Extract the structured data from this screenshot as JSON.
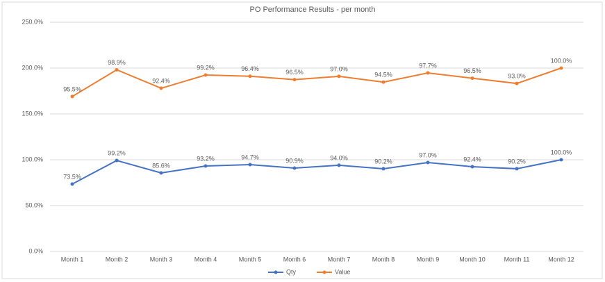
{
  "chart_data": {
    "type": "line",
    "stacked": true,
    "title": "PO Performance Results - per month",
    "categories": [
      "Month 1",
      "Month 2",
      "Month 3",
      "Month 4",
      "Month 5",
      "Month 6",
      "Month 7",
      "Month 8",
      "Month 9",
      "Month 10",
      "Month 11",
      "Month 12"
    ],
    "series": [
      {
        "name": "Qty",
        "color": "#4472c4",
        "values": [
          73.5,
          99.2,
          85.6,
          93.2,
          94.7,
          90.9,
          94.0,
          90.2,
          97.0,
          92.4,
          90.2,
          100.0
        ],
        "value_labels": [
          "73.5%",
          "99.2%",
          "85.6%",
          "93.2%",
          "94.7%",
          "90.9%",
          "94.0%",
          "90.2%",
          "97.0%",
          "92.4%",
          "90.2%",
          "100.0%"
        ]
      },
      {
        "name": "Value",
        "color": "#ed7d31",
        "values": [
          95.5,
          98.9,
          92.4,
          99.2,
          96.4,
          96.5,
          97.0,
          94.5,
          97.7,
          96.5,
          93.0,
          100.0
        ],
        "value_labels": [
          "95.5%",
          "98.9%",
          "92.4%",
          "99.2%",
          "96.4%",
          "96.5%",
          "97.0%",
          "94.5%",
          "97.7%",
          "96.5%",
          "93.0%",
          "100.0%"
        ]
      }
    ],
    "ylim": [
      0,
      250
    ],
    "yticks": [
      {
        "value": 0,
        "label": "0.0%"
      },
      {
        "value": 50,
        "label": "50.0%"
      },
      {
        "value": 100,
        "label": "100.0%"
      },
      {
        "value": 150,
        "label": "150.0%"
      },
      {
        "value": 200,
        "label": "200.0%"
      },
      {
        "value": 250,
        "label": "250.0%"
      }
    ],
    "grid": true,
    "legend": "bottom"
  }
}
